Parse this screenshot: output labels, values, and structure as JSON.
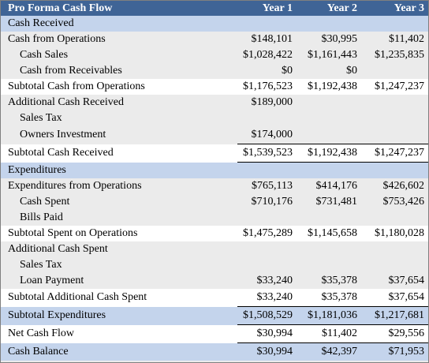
{
  "header": {
    "title": "Pro Forma Cash Flow",
    "years": [
      "Year 1",
      "Year 2",
      "Year 3"
    ]
  },
  "rows": [
    {
      "label": "Cash Received",
      "values": [
        "",
        "",
        ""
      ]
    },
    {
      "label": "Cash from Operations",
      "values": [
        "$148,101",
        "$30,995",
        "$11,402"
      ]
    },
    {
      "label": "Cash Sales",
      "values": [
        "$1,028,422",
        "$1,161,443",
        "$1,235,835"
      ]
    },
    {
      "label": "Cash from Receivables",
      "values": [
        "$0",
        "$0",
        ""
      ]
    },
    {
      "label": "Subtotal Cash from Operations",
      "values": [
        "$1,176,523",
        "$1,192,438",
        "$1,247,237"
      ]
    },
    {
      "label": "Additional Cash Received",
      "values": [
        "$189,000",
        "",
        ""
      ]
    },
    {
      "label": "Sales Tax",
      "values": [
        "",
        "",
        ""
      ]
    },
    {
      "label": "Owners Investment",
      "values": [
        "$174,000",
        "",
        ""
      ]
    },
    {
      "label": "Subtotal Cash Received",
      "values": [
        "$1,539,523",
        "$1,192,438",
        "$1,247,237"
      ]
    },
    {
      "label": "Expenditures",
      "values": [
        "",
        "",
        ""
      ]
    },
    {
      "label": "Expenditures from Operations",
      "values": [
        "$765,113",
        "$414,176",
        "$426,602"
      ]
    },
    {
      "label": "Cash Spent",
      "values": [
        "$710,176",
        "$731,481",
        "$753,426"
      ]
    },
    {
      "label": "Bills Paid",
      "values": [
        "",
        "",
        ""
      ]
    },
    {
      "label": "Subtotal Spent on Operations",
      "values": [
        "$1,475,289",
        "$1,145,658",
        "$1,180,028"
      ]
    },
    {
      "label": "Additional Cash Spent",
      "values": [
        "",
        "",
        ""
      ]
    },
    {
      "label": "Sales Tax",
      "values": [
        "",
        "",
        ""
      ]
    },
    {
      "label": "Loan Payment",
      "values": [
        "$33,240",
        "$35,378",
        "$37,654"
      ]
    },
    {
      "label": "Subtotal Additional Cash Spent",
      "values": [
        "$33,240",
        "$35,378",
        "$37,654"
      ]
    },
    {
      "label": "Subtotal Expenditures",
      "values": [
        "$1,508,529",
        "$1,181,036",
        "$1,217,681"
      ]
    },
    {
      "label": "Net Cash Flow",
      "values": [
        "$30,994",
        "$11,402",
        "$29,556"
      ]
    },
    {
      "label": "Cash Balance",
      "values": [
        "$30,994",
        "$42,397",
        "$71,953"
      ]
    }
  ],
  "colors": {
    "header_bg": "#3f6496",
    "section_bg": "#c4d4ec",
    "row_gray": "#ebebeb",
    "row_white": "#ffffff"
  }
}
